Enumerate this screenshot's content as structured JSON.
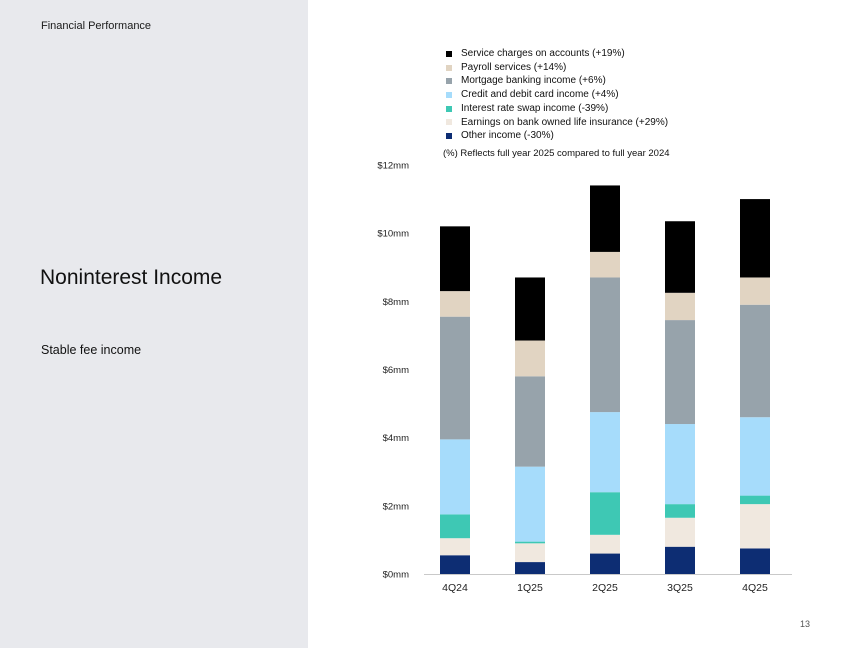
{
  "page": {
    "section_label": "Financial Performance",
    "title": "Noninterest Income",
    "subtitle": "Stable fee income",
    "page_number": "13"
  },
  "chart_data": {
    "type": "bar",
    "stacked": true,
    "categories": [
      "4Q24",
      "1Q25",
      "2Q25",
      "3Q25",
      "4Q25"
    ],
    "ylim": [
      0,
      12
    ],
    "yticks": [
      0,
      2,
      4,
      6,
      8,
      10,
      12
    ],
    "ytick_labels": [
      "$0mm",
      "$2mm",
      "$4mm",
      "$6mm",
      "$8mm",
      "$10mm",
      "$12mm"
    ],
    "note": "(%) Reflects full year 2025 compared to full year 2024",
    "grid": false,
    "legend_position": "top",
    "series": [
      {
        "name": "Other income (-30%)",
        "color": "#0d2d73",
        "values": [
          0.55,
          0.35,
          0.6,
          0.8,
          0.75
        ]
      },
      {
        "name": "Earnings on bank owned life insurance (+29%)",
        "color": "#f0e8df",
        "values": [
          0.5,
          0.55,
          0.55,
          0.85,
          1.3
        ]
      },
      {
        "name": "Interest rate swap income (-39%)",
        "color": "#3ec8b4",
        "values": [
          0.7,
          0.05,
          1.25,
          0.4,
          0.25
        ]
      },
      {
        "name": "Credit and debit card income (+4%)",
        "color": "#a6dcfb",
        "values": [
          2.2,
          2.2,
          2.35,
          2.35,
          2.3
        ]
      },
      {
        "name": "Mortgage banking income (+6%)",
        "color": "#97a3ab",
        "values": [
          3.6,
          2.65,
          3.95,
          3.05,
          3.3
        ]
      },
      {
        "name": "Payroll services (+14%)",
        "color": "#e1d4c2",
        "values": [
          0.75,
          1.05,
          0.75,
          0.8,
          0.8
        ]
      },
      {
        "name": "Service charges on accounts (+19%)",
        "color": "#000000",
        "values": [
          1.9,
          1.85,
          1.95,
          2.1,
          2.3
        ]
      }
    ]
  }
}
